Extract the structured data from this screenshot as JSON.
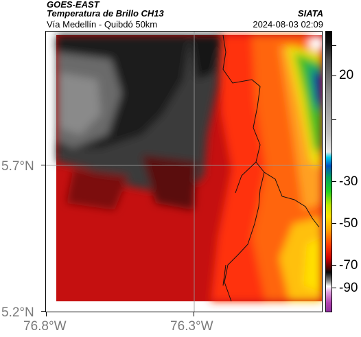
{
  "header": {
    "satellite": "GOES-EAST",
    "product": "Temperatura de Brillo CH13",
    "region": "Vía Medellín - Quibdó 50km",
    "agency": "SIATA",
    "timestamp": "2024-08-03 02:09"
  },
  "axes": {
    "lat_labels": [
      "5.7°N",
      "5.2°N"
    ],
    "lon_labels": [
      "76.8°W",
      "76.3°W"
    ]
  },
  "colorbar": {
    "labels": [
      "20",
      "-30",
      "-50",
      "-70",
      "-90"
    ]
  },
  "colors": {
    "cold_gray": "#2a2a2a",
    "warm_red": "#e01010",
    "hot_orange": "#ff7010",
    "yellow": "#ffe000",
    "green": "#10c020",
    "blue": "#1030a0"
  }
}
